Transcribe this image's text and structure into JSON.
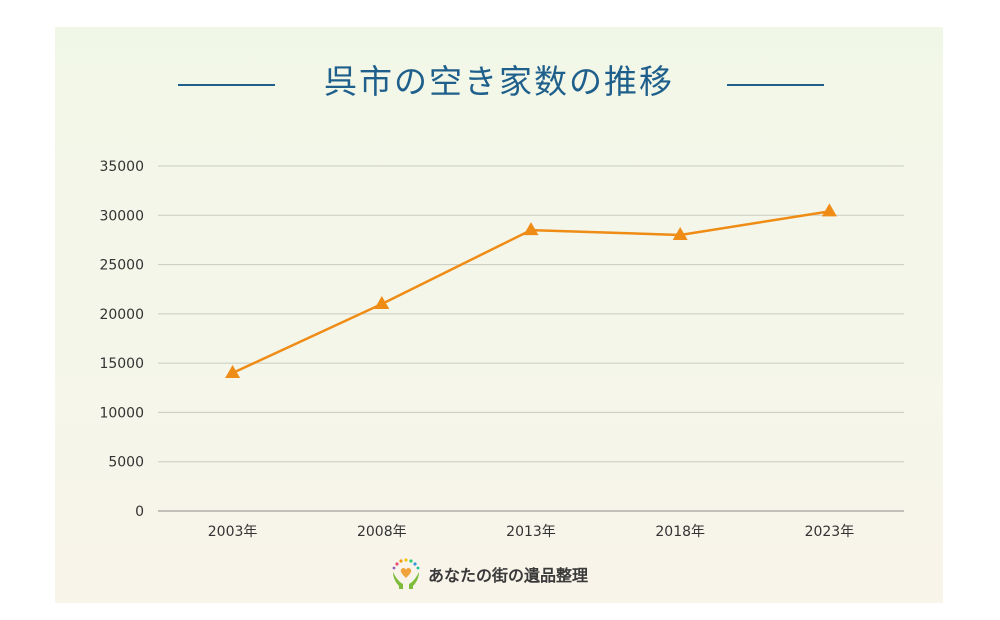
{
  "chart_data": {
    "type": "line",
    "title": "呉市の空き家数の推移",
    "categories": [
      "2003年",
      "2008年",
      "2013年",
      "2018年",
      "2023年"
    ],
    "series": [
      {
        "values": [
          14000,
          21000,
          28500,
          28000,
          30400
        ]
      }
    ],
    "yticks": [
      "0",
      "5000",
      "10000",
      "15000",
      "20000",
      "25000",
      "30000",
      "35000"
    ],
    "ylim": [
      0,
      35000
    ],
    "grid": true,
    "line_color": "#ef8c16",
    "grid_color": "#c9cbc1",
    "title_color": "#1f5f8b",
    "marker": "triangle"
  },
  "footer": {
    "logo_text": "あなたの街の遺品整理",
    "logo_icon": "hands-heart-icon"
  }
}
